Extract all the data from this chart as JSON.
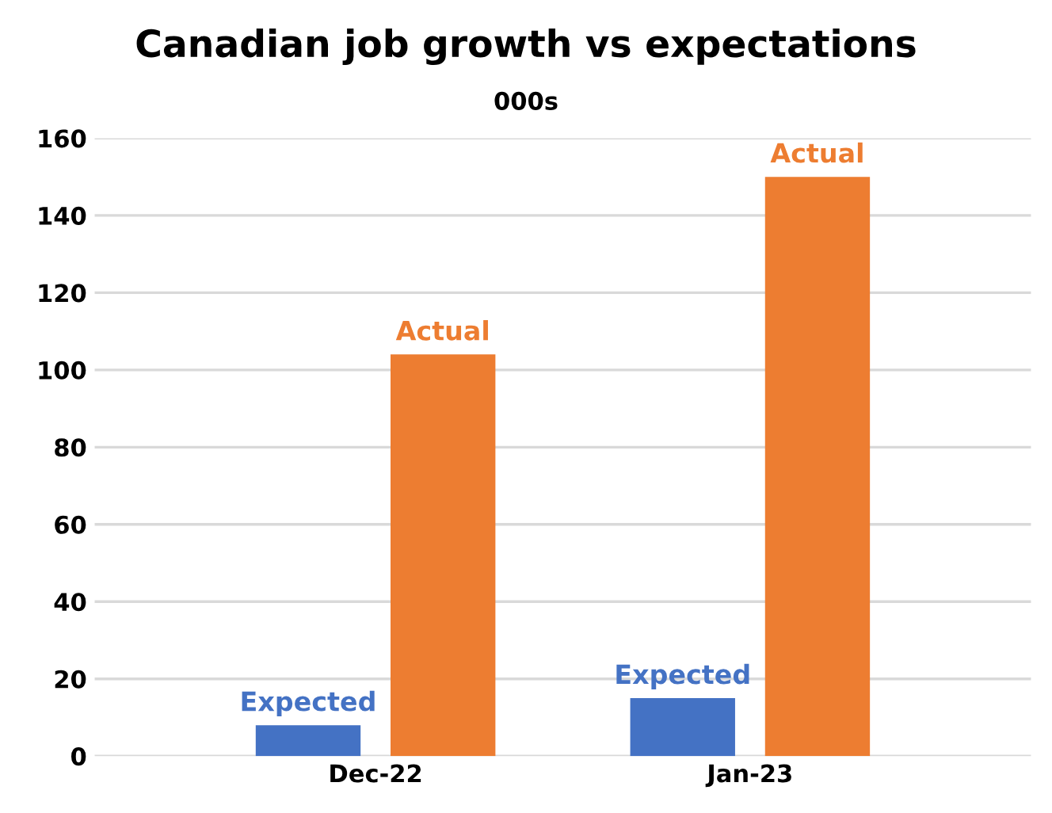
{
  "chart_data": {
    "type": "bar",
    "title": "Canadian job growth vs expectations",
    "subtitle": "000s",
    "categories": [
      "Dec-22",
      "Jan-23"
    ],
    "series": [
      {
        "name": "Expected",
        "color": "#4472c4",
        "values": [
          8,
          15
        ]
      },
      {
        "name": "Actual",
        "color": "#ed7d31",
        "values": [
          104,
          150
        ]
      }
    ],
    "ylim": [
      0,
      160
    ],
    "yticks": [
      0,
      20,
      40,
      60,
      80,
      100,
      120,
      140,
      160
    ],
    "grid": "y",
    "legend": false
  }
}
